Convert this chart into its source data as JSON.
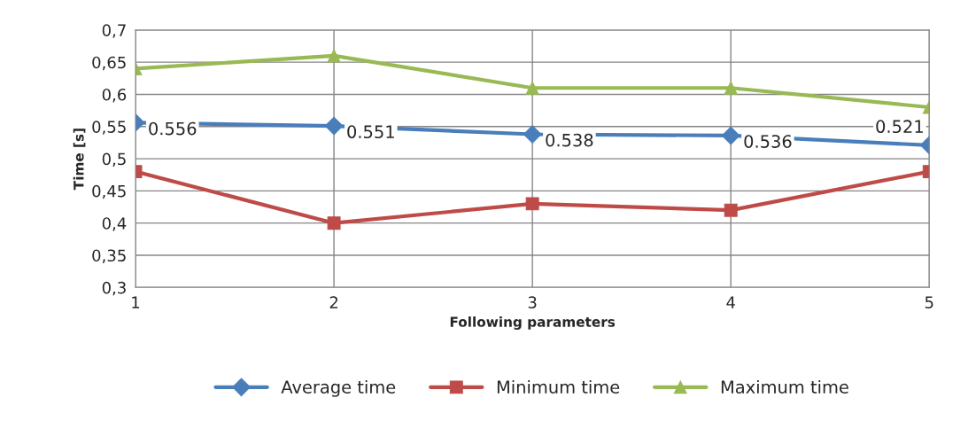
{
  "chart_data": {
    "type": "line",
    "xlabel": "Following parameters",
    "ylabel": "Time [s]",
    "x": [
      1,
      2,
      3,
      4,
      5
    ],
    "series": [
      {
        "name": "Average time",
        "color": "#4a7ebb",
        "marker": "diamond",
        "values": [
          0.556,
          0.551,
          0.538,
          0.536,
          0.521
        ],
        "value_labels": [
          "0.556",
          "0.551",
          "0.538",
          "0.536",
          "0.521"
        ]
      },
      {
        "name": "Minimum time",
        "color": "#be4b48",
        "marker": "square",
        "values": [
          0.48,
          0.4,
          0.43,
          0.42,
          0.48
        ]
      },
      {
        "name": "Maximum time",
        "color": "#98b954",
        "marker": "triangle",
        "values": [
          0.64,
          0.66,
          0.61,
          0.61,
          0.58
        ]
      }
    ],
    "xlim": [
      1,
      5
    ],
    "xticks": [
      1,
      2,
      3,
      4,
      5
    ],
    "ylim": [
      0.3,
      0.7
    ],
    "yticks": [
      {
        "value": 0.3,
        "label": "0,3"
      },
      {
        "value": 0.35,
        "label": "0,35"
      },
      {
        "value": 0.4,
        "label": "0,4"
      },
      {
        "value": 0.45,
        "label": "0,45"
      },
      {
        "value": 0.5,
        "label": "0,5"
      },
      {
        "value": 0.55,
        "label": "0,55"
      },
      {
        "value": 0.6,
        "label": "0,6"
      },
      {
        "value": 0.65,
        "label": "0,65"
      },
      {
        "value": 0.7,
        "label": "0,7"
      }
    ],
    "grid": true,
    "legend": "bottom"
  }
}
